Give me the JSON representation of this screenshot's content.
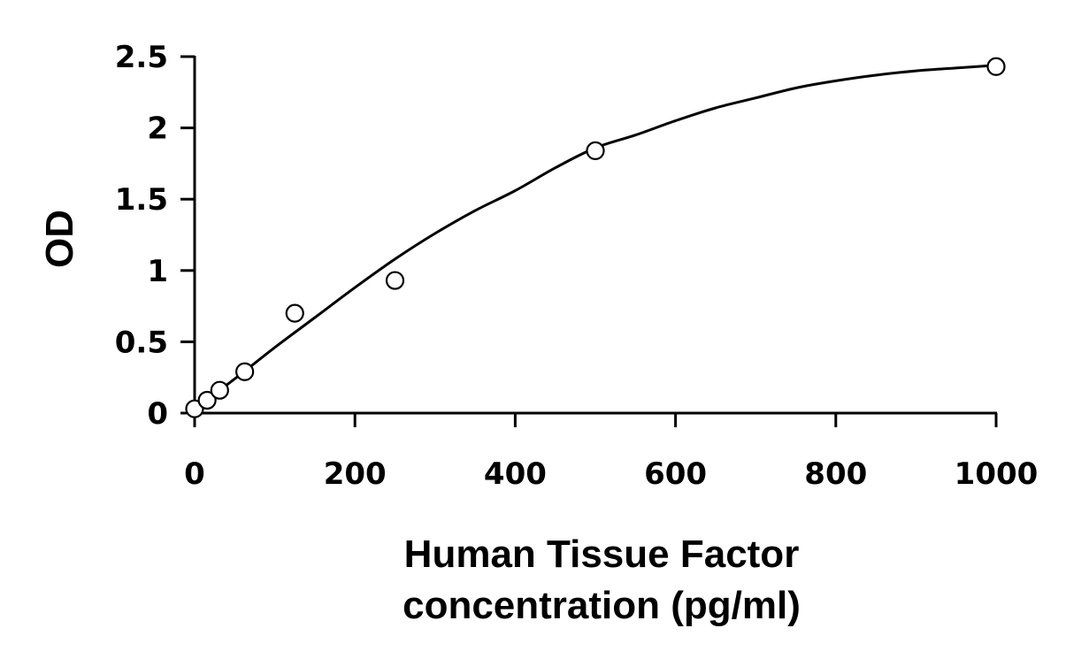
{
  "chart_data": {
    "type": "scatter",
    "title": "",
    "xlabel_lines": [
      "Human Tissue Factor",
      "concentration (pg/ml)"
    ],
    "ylabel": "OD",
    "xlim": [
      0,
      1000
    ],
    "ylim": [
      0,
      2.5
    ],
    "x_ticks": [
      0,
      200,
      400,
      600,
      800,
      1000
    ],
    "x_tick_labels": [
      "0",
      "200",
      "400",
      "600",
      "800",
      "1000"
    ],
    "y_ticks": [
      0,
      0.5,
      1,
      1.5,
      2,
      2.5
    ],
    "y_tick_labels": [
      "0",
      "0.5",
      "1",
      "1.5",
      "2",
      "2.5"
    ],
    "grid": false,
    "legend": "none",
    "series": [
      {
        "x": [
          0,
          15.6,
          31.25,
          62.5,
          125,
          250,
          500,
          1000
        ],
        "y": [
          0.03,
          0.09,
          0.16,
          0.29,
          0.7,
          0.93,
          1.84,
          2.43
        ],
        "marker": "open-circle",
        "color": "#000000"
      }
    ],
    "fit_curve": {
      "type": "polynomial-smooth",
      "color": "#000000",
      "x": [
        0,
        50,
        100,
        150,
        200,
        250,
        300,
        350,
        400,
        450,
        500,
        550,
        600,
        650,
        700,
        750,
        800,
        850,
        900,
        950,
        1000
      ],
      "y": [
        0.03,
        0.24,
        0.46,
        0.67,
        0.88,
        1.08,
        1.26,
        1.42,
        1.56,
        1.72,
        1.86,
        1.95,
        2.05,
        2.14,
        2.21,
        2.28,
        2.33,
        2.37,
        2.4,
        2.42,
        2.44
      ]
    }
  }
}
